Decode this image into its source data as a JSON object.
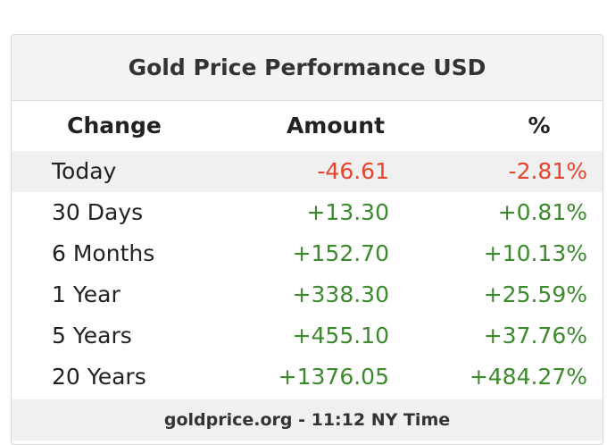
{
  "header": {
    "title": "Gold Price Performance USD"
  },
  "table": {
    "columns": [
      "Change",
      "Amount",
      "%"
    ],
    "rows": [
      [
        "Today",
        "-46.61",
        "-2.81%"
      ],
      [
        "30 Days",
        "+13.30",
        "+0.81%"
      ],
      [
        "6 Months",
        "+152.70",
        "+10.13%"
      ],
      [
        "1 Year",
        "+338.30",
        "+25.59%"
      ],
      [
        "5 Years",
        "+455.10",
        "+37.76%"
      ],
      [
        "20 Years",
        "+1376.05",
        "+484.27%"
      ]
    ]
  },
  "footer": {
    "text": "goldprice.org - 11:12 NY Time"
  }
}
